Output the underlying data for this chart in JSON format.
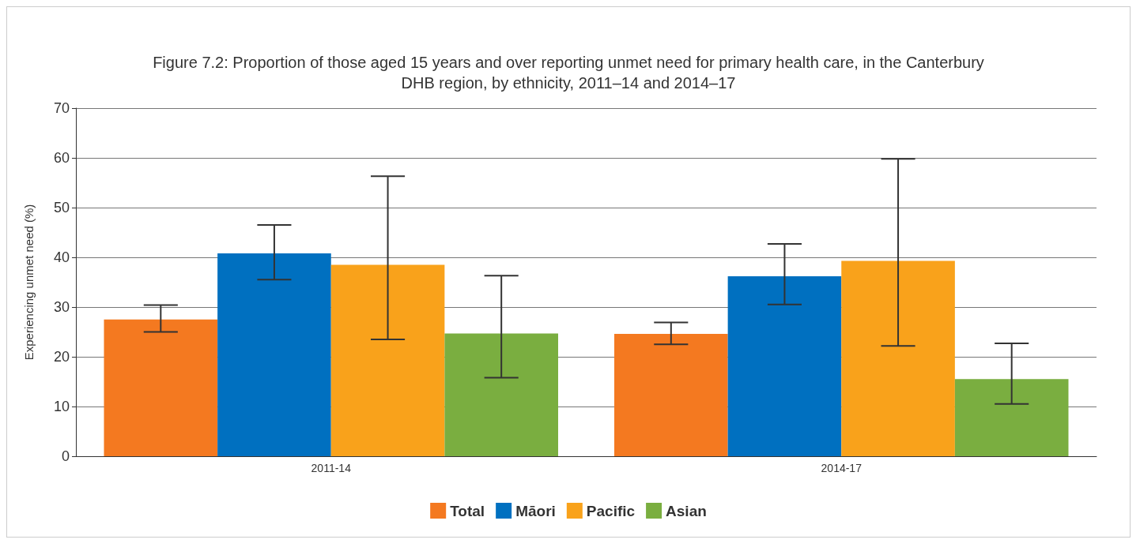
{
  "chart_data": {
    "type": "bar",
    "title": "Figure 7.2: Proportion of those aged 15 years and over reporting unmet need for primary health care, in the Canterbury\nDHB region, by ethnicity, 2011–14 and 2014–17",
    "ylabel": "Experiencing unmet need (%)",
    "categories": [
      "2011-14",
      "2014-17"
    ],
    "series": [
      {
        "name": "Total",
        "color": "#f47920",
        "values": [
          27.5,
          24.6
        ],
        "errors": [
          [
            25.0,
            30.4
          ],
          [
            22.5,
            26.9
          ]
        ]
      },
      {
        "name": "Māori",
        "color": "#0070c0",
        "values": [
          40.8,
          36.2
        ],
        "errors": [
          [
            35.5,
            46.5
          ],
          [
            30.5,
            42.7
          ]
        ]
      },
      {
        "name": "Pacific",
        "color": "#f9a21b",
        "values": [
          38.5,
          39.3
        ],
        "errors": [
          [
            23.5,
            56.3
          ],
          [
            22.2,
            59.8
          ]
        ]
      },
      {
        "name": "Asian",
        "color": "#7aae40",
        "values": [
          24.7,
          15.5
        ],
        "errors": [
          [
            15.8,
            36.3
          ],
          [
            10.5,
            22.7
          ]
        ]
      }
    ],
    "ylim": [
      0,
      70
    ],
    "yticks": [
      0,
      10,
      20,
      30,
      40,
      50,
      60,
      70
    ],
    "grid": "y",
    "legend": "bottom"
  }
}
